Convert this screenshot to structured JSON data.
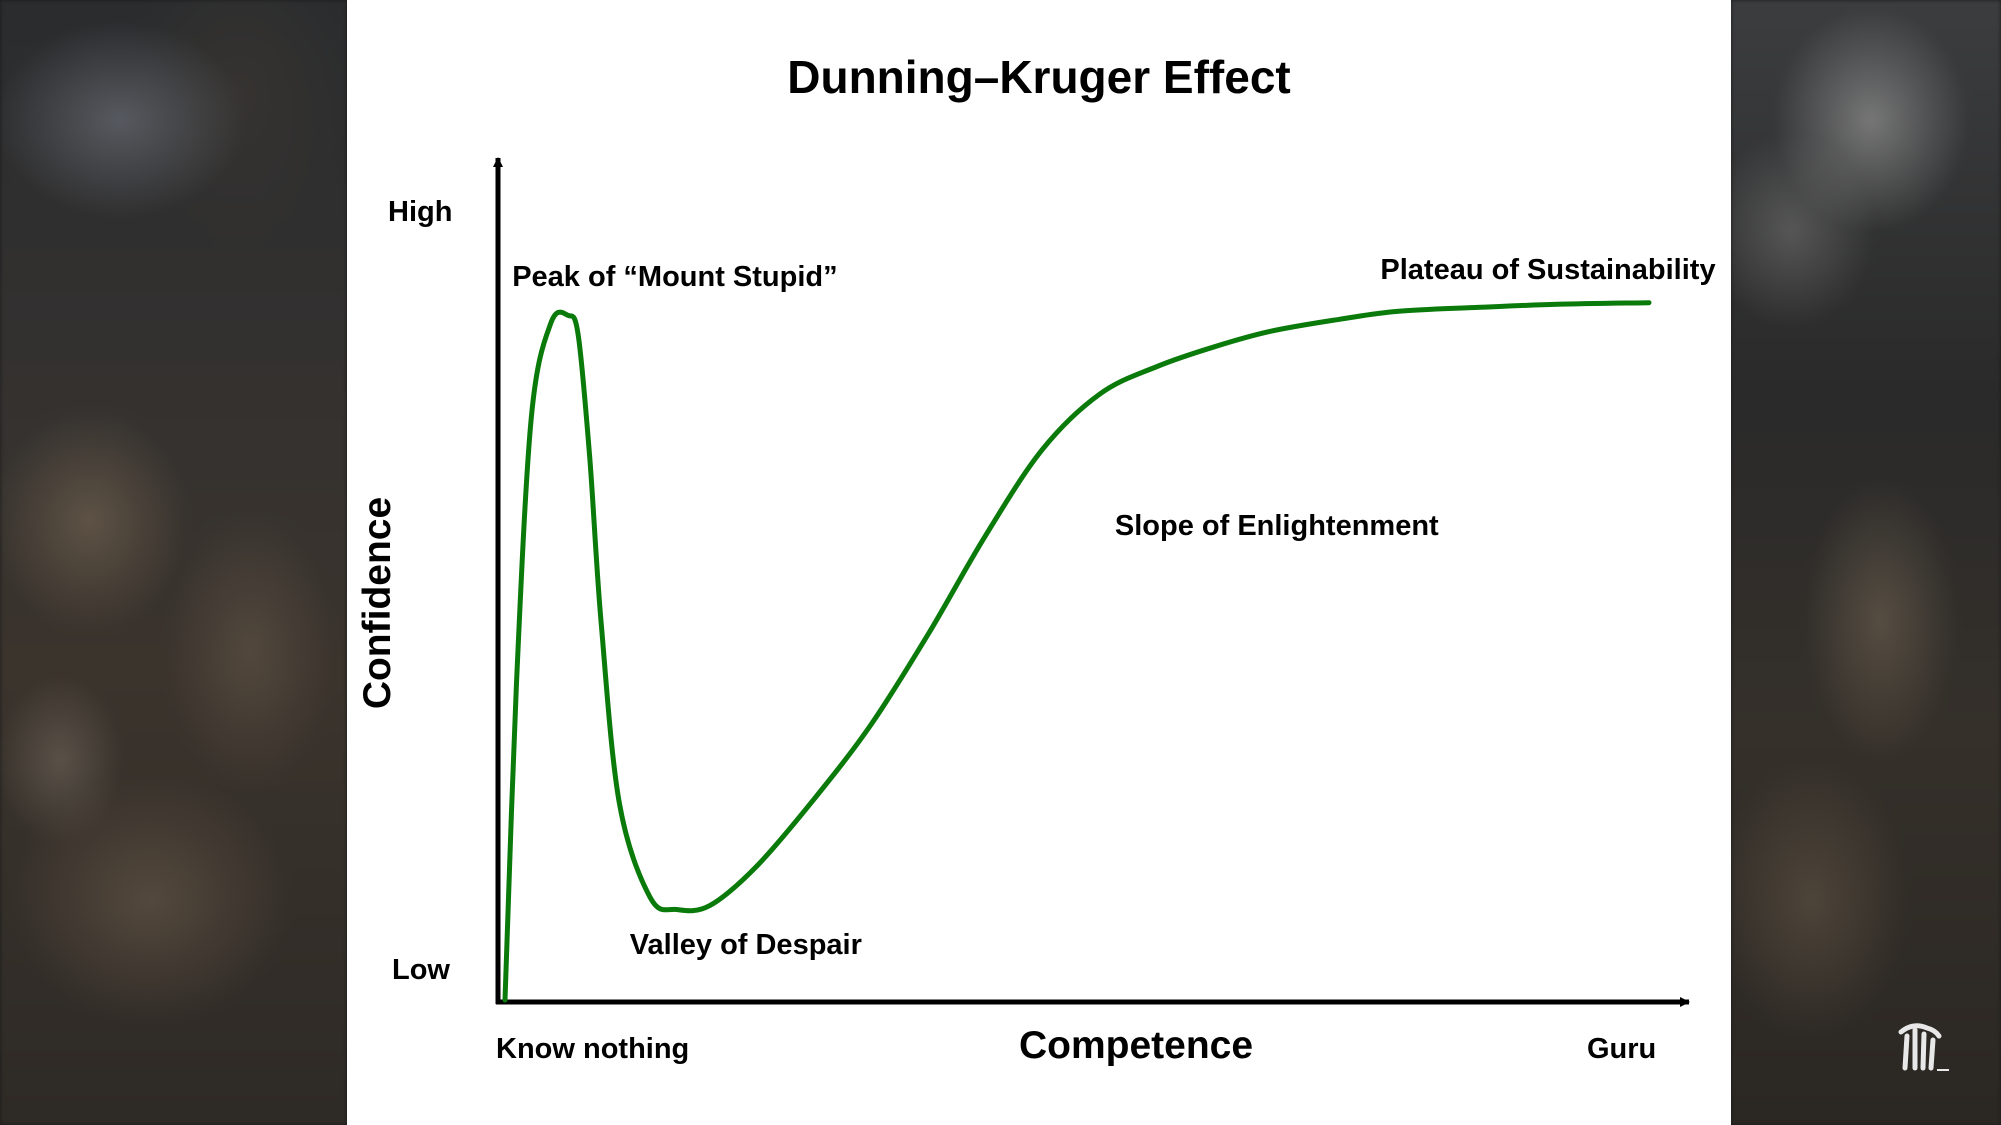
{
  "chart_data": {
    "type": "line",
    "title": "Dunning–Kruger Effect",
    "xlabel": "Competence",
    "ylabel": "Confidence",
    "x_ticks": {
      "low": "Know nothing",
      "high": "Guru"
    },
    "y_ticks": {
      "low": "Low",
      "high": "High"
    },
    "xlim": [
      0,
      100
    ],
    "ylim": [
      0,
      100
    ],
    "grid": false,
    "series": [
      {
        "x": [
          0,
          1,
          2.3,
          4,
          5.5,
          6.4,
          7.4,
          8.4,
          10,
          12.7,
          15,
          17.9,
          22,
          27,
          32,
          37,
          42,
          47,
          52,
          57,
          62,
          67,
          73,
          78,
          85,
          92,
          100
        ],
        "y": [
          0,
          40,
          74,
          86,
          87,
          84.5,
          69,
          48,
          25,
          13,
          11.5,
          12,
          17,
          25.5,
          35,
          46.5,
          59,
          70,
          77,
          80.5,
          83,
          85,
          86.5,
          87.5,
          88,
          88.4,
          88.6
        ]
      }
    ],
    "annotations": [
      {
        "text": "Peak of “Mount Stupid”",
        "x": 6.4,
        "y": 84.5
      },
      {
        "text": "Valley of Despair",
        "x": 17.9,
        "y": 12
      },
      {
        "text": "Slope of Enlightenment",
        "x": 52,
        "y": 59
      },
      {
        "text": "Plateau of Sustainability",
        "x": 85,
        "y": 88
      }
    ],
    "colors": {
      "curve": "#0a7a0a",
      "axis": "#000000"
    }
  },
  "logo": {
    "icon": "hand-logo-icon"
  }
}
